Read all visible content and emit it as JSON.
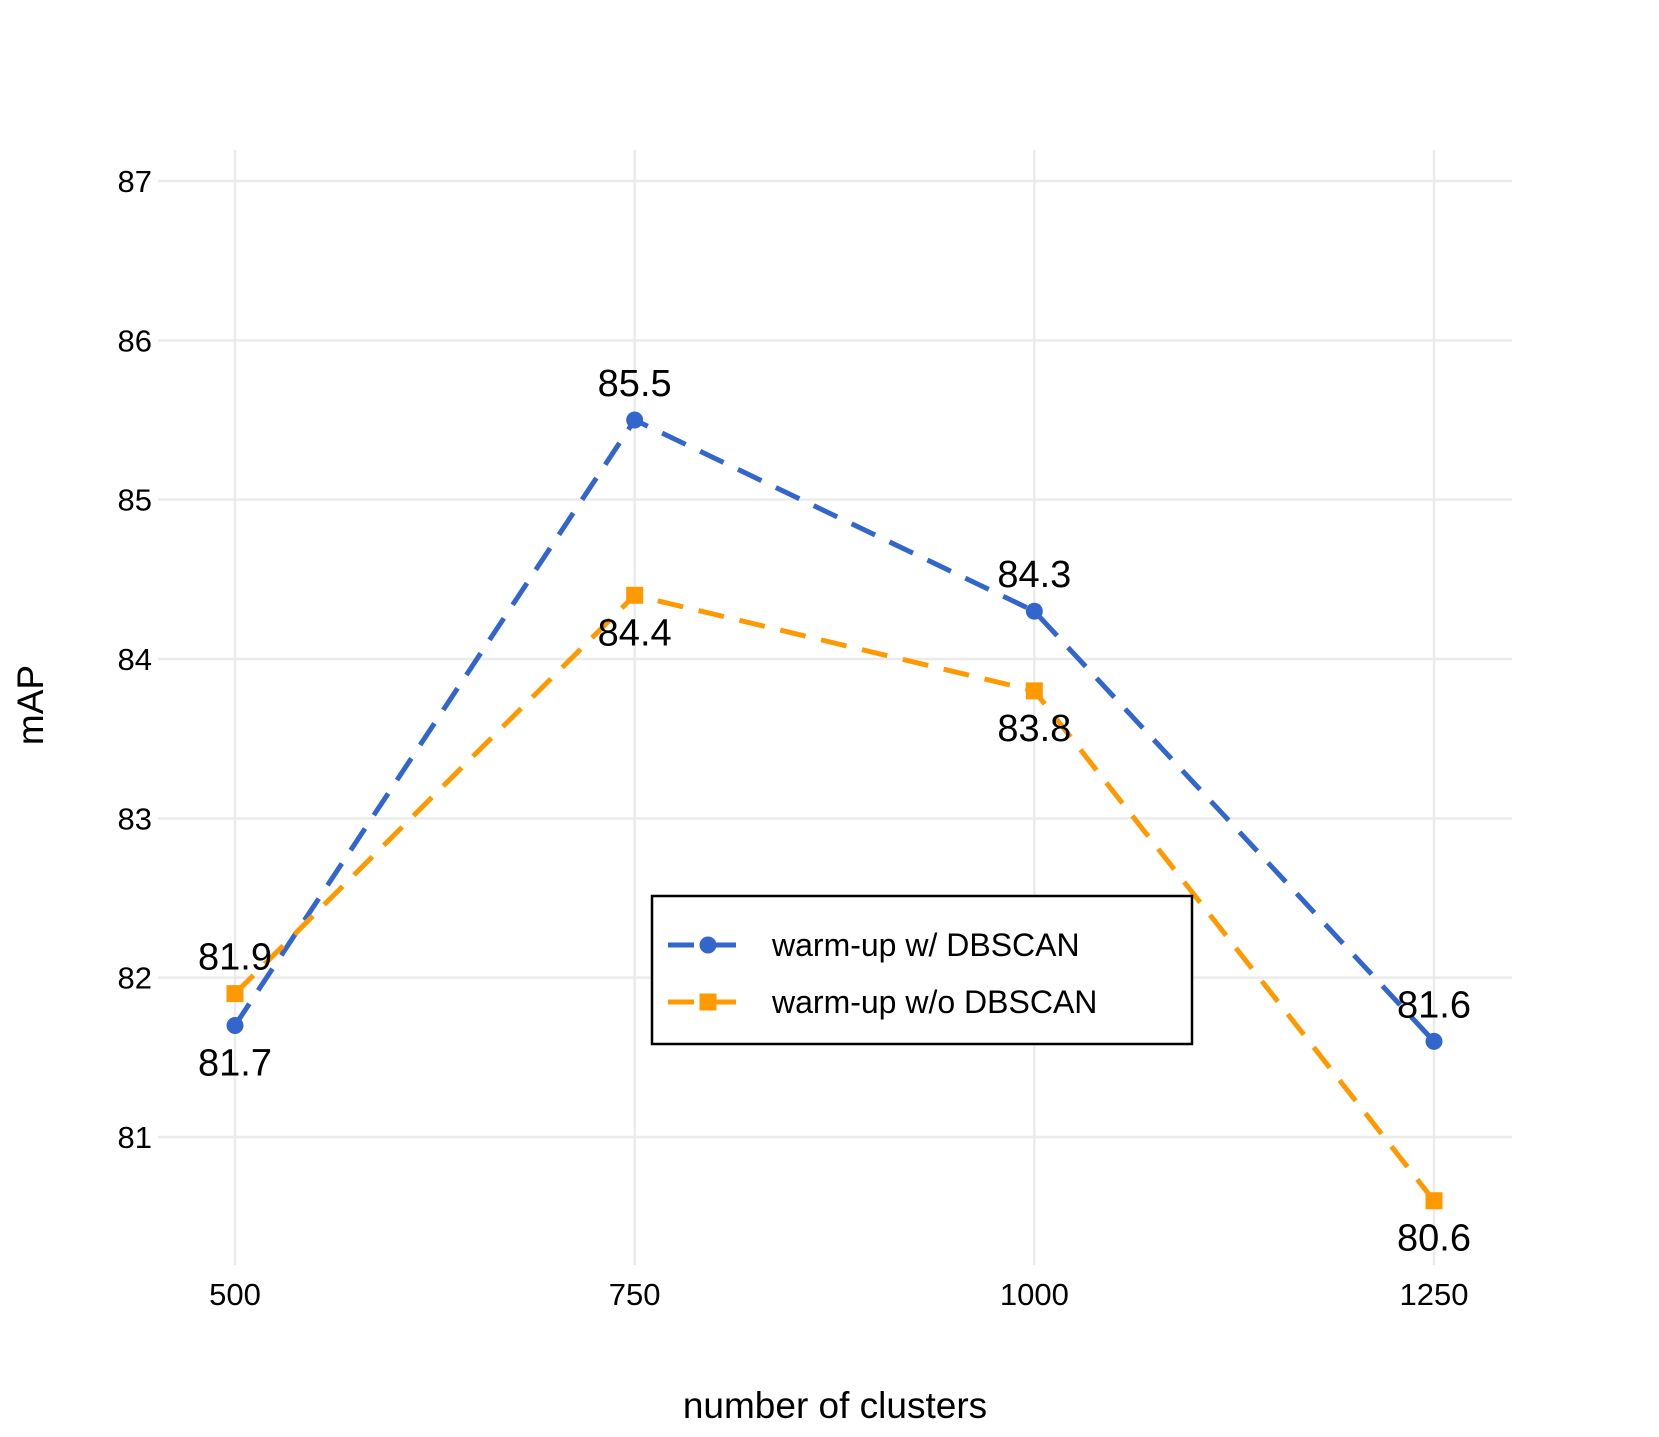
{
  "chart_data": {
    "type": "line",
    "title": "",
    "xlabel": "number of clusters",
    "ylabel": "mAP",
    "x": [
      500,
      750,
      1000,
      1250
    ],
    "x_tick_labels": [
      "500",
      "750",
      "1000",
      "1250"
    ],
    "y_ticks": [
      81,
      82,
      83,
      84,
      85,
      86,
      87
    ],
    "y_tick_labels": [
      "81",
      "82",
      "83",
      "84",
      "85",
      "86",
      "87"
    ],
    "xlim": [
      458,
      1300
    ],
    "ylim": [
      80.25,
      87.2
    ],
    "grid": true,
    "legend_position": "center",
    "series": [
      {
        "name": "warm-up w/ DBSCAN",
        "values": [
          81.7,
          85.5,
          84.3,
          81.6
        ],
        "labels": [
          "81.7",
          "85.5",
          "84.3",
          "81.6"
        ],
        "label_side": [
          "below",
          "above",
          "above",
          "above"
        ],
        "color": "#3366cc",
        "marker": "circle",
        "line_style": "dashed"
      },
      {
        "name": "warm-up w/o DBSCAN",
        "values": [
          81.9,
          84.4,
          83.8,
          80.6
        ],
        "labels": [
          "81.9",
          "84.4",
          "83.8",
          "80.6"
        ],
        "label_side": [
          "above",
          "below",
          "below",
          "below"
        ],
        "color": "#ff9900",
        "marker": "square",
        "line_style": "dashed"
      }
    ]
  }
}
